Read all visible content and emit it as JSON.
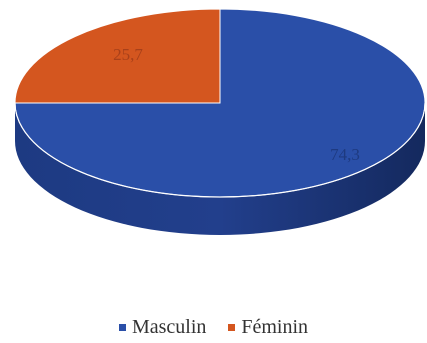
{
  "chart_data": {
    "type": "pie",
    "style": "3d",
    "categories": [
      "Masculin",
      "Féminin"
    ],
    "values": [
      74.3,
      25.7
    ],
    "labels": [
      "74,3",
      "25,7"
    ],
    "colors": [
      "#2a4fa8",
      "#d4561f"
    ],
    "legend_position": "bottom"
  },
  "legend": {
    "items": [
      {
        "label": "Masculin",
        "color": "#2a4fa8"
      },
      {
        "label": "Féminin",
        "color": "#d4561f"
      }
    ]
  }
}
